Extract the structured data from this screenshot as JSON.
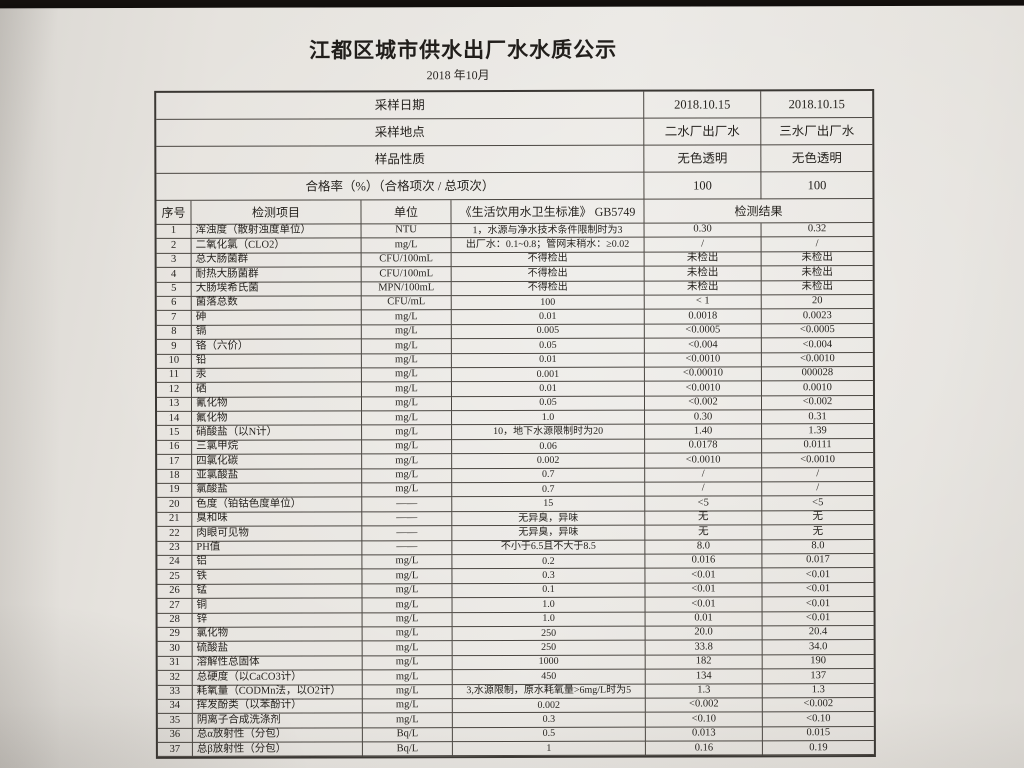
{
  "title": "江都区城市供水出厂水水质公示",
  "subtitle": "2018 年10月",
  "meta_rows": [
    {
      "label": "采样日期",
      "plant2": "2018.10.15",
      "plant3": "2018.10.15"
    },
    {
      "label": "采样地点",
      "plant2": "二水厂出厂水",
      "plant3": "三水厂出厂水"
    },
    {
      "label": "样品性质",
      "plant2": "无色透明",
      "plant3": "无色透明"
    },
    {
      "label": "合格率（%）（合格项次 / 总项次）",
      "plant2": "100",
      "plant3": "100"
    }
  ],
  "column_headers": {
    "no": "序号",
    "item": "检测项目",
    "unit": "单位",
    "standard": "《生活饮用水卫生标准》 GB5749",
    "result": "检测结果"
  },
  "rows": [
    {
      "no": "1",
      "item": "浑浊度（散射浊度单位）",
      "unit": "NTU",
      "std": "1，水源与净水技术条件限制时为3",
      "r1": "0.30",
      "r2": "0.32"
    },
    {
      "no": "2",
      "item": "二氧化氯（CLO2）",
      "unit": "mg/L",
      "std": "出厂水：0.1~0.8；管网末稍水：≥0.02",
      "r1": "/",
      "r2": "/"
    },
    {
      "no": "3",
      "item": "总大肠菌群",
      "unit": "CFU/100mL",
      "std": "不得检出",
      "r1": "未检出",
      "r2": "未检出"
    },
    {
      "no": "4",
      "item": "耐热大肠菌群",
      "unit": "CFU/100mL",
      "std": "不得检出",
      "r1": "未检出",
      "r2": "未检出"
    },
    {
      "no": "5",
      "item": "大肠埃希氏菌",
      "unit": "MPN/100mL",
      "std": "不得检出",
      "r1": "未检出",
      "r2": "未检出"
    },
    {
      "no": "6",
      "item": "菌落总数",
      "unit": "CFU/mL",
      "std": "100",
      "r1": "< 1",
      "r2": "20"
    },
    {
      "no": "7",
      "item": "砷",
      "unit": "mg/L",
      "std": "0.01",
      "r1": "0.0018",
      "r2": "0.0023"
    },
    {
      "no": "8",
      "item": "镉",
      "unit": "mg/L",
      "std": "0.005",
      "r1": "<0.0005",
      "r2": "<0.0005"
    },
    {
      "no": "9",
      "item": "铬（六价）",
      "unit": "mg/L",
      "std": "0.05",
      "r1": "<0.004",
      "r2": "<0.004"
    },
    {
      "no": "10",
      "item": "铅",
      "unit": "mg/L",
      "std": "0.01",
      "r1": "<0.0010",
      "r2": "<0.0010"
    },
    {
      "no": "11",
      "item": "汞",
      "unit": "mg/L",
      "std": "0.001",
      "r1": "<0.00010",
      "r2": "000028"
    },
    {
      "no": "12",
      "item": "硒",
      "unit": "mg/L",
      "std": "0.01",
      "r1": "<0.0010",
      "r2": "0.0010"
    },
    {
      "no": "13",
      "item": "氰化物",
      "unit": "mg/L",
      "std": "0.05",
      "r1": "<0.002",
      "r2": "<0.002"
    },
    {
      "no": "14",
      "item": "氟化物",
      "unit": "mg/L",
      "std": "1.0",
      "r1": "0.30",
      "r2": "0.31"
    },
    {
      "no": "15",
      "item": "硝酸盐（以N计）",
      "unit": "mg/L",
      "std": "10，地下水源限制时为20",
      "r1": "1.40",
      "r2": "1.39"
    },
    {
      "no": "16",
      "item": "三氯甲烷",
      "unit": "mg/L",
      "std": "0.06",
      "r1": "0.0178",
      "r2": "0.0111"
    },
    {
      "no": "17",
      "item": "四氯化碳",
      "unit": "mg/L",
      "std": "0.002",
      "r1": "<0.0010",
      "r2": "<0.0010"
    },
    {
      "no": "18",
      "item": "亚氯酸盐",
      "unit": "mg/L",
      "std": "0.7",
      "r1": "/",
      "r2": "/"
    },
    {
      "no": "19",
      "item": "氯酸盐",
      "unit": "mg/L",
      "std": "0.7",
      "r1": "/",
      "r2": "/"
    },
    {
      "no": "20",
      "item": "色度（铂钴色度单位）",
      "unit": "——",
      "std": "15",
      "r1": "<5",
      "r2": "<5"
    },
    {
      "no": "21",
      "item": "臭和味",
      "unit": "——",
      "std": "无异臭，异味",
      "r1": "无",
      "r2": "无"
    },
    {
      "no": "22",
      "item": "肉眼可见物",
      "unit": "——",
      "std": "无异臭，异味",
      "r1": "无",
      "r2": "无"
    },
    {
      "no": "23",
      "item": "PH值",
      "unit": "——",
      "std": "不小于6.5且不大于8.5",
      "r1": "8.0",
      "r2": "8.0"
    },
    {
      "no": "24",
      "item": "铝",
      "unit": "mg/L",
      "std": "0.2",
      "r1": "0.016",
      "r2": "0.017"
    },
    {
      "no": "25",
      "item": "铁",
      "unit": "mg/L",
      "std": "0.3",
      "r1": "<0.01",
      "r2": "<0.01"
    },
    {
      "no": "26",
      "item": "锰",
      "unit": "mg/L",
      "std": "0.1",
      "r1": "<0.01",
      "r2": "<0.01"
    },
    {
      "no": "27",
      "item": "铜",
      "unit": "mg/L",
      "std": "1.0",
      "r1": "<0.01",
      "r2": "<0.01"
    },
    {
      "no": "28",
      "item": "锌",
      "unit": "mg/L",
      "std": "1.0",
      "r1": "0.01",
      "r2": "<0.01"
    },
    {
      "no": "29",
      "item": "氯化物",
      "unit": "mg/L",
      "std": "250",
      "r1": "20.0",
      "r2": "20.4"
    },
    {
      "no": "30",
      "item": "硫酸盐",
      "unit": "mg/L",
      "std": "250",
      "r1": "33.8",
      "r2": "34.0"
    },
    {
      "no": "31",
      "item": "溶解性总固体",
      "unit": "mg/L",
      "std": "1000",
      "r1": "182",
      "r2": "190"
    },
    {
      "no": "32",
      "item": "总硬度（以CaCO3计）",
      "unit": "mg/L",
      "std": "450",
      "r1": "134",
      "r2": "137"
    },
    {
      "no": "33",
      "item": "耗氧量（CODMn法，以O2计）",
      "unit": "mg/L",
      "std": "3,水源限制，原水耗氧量>6mg/L时为5",
      "r1": "1.3",
      "r2": "1.3"
    },
    {
      "no": "34",
      "item": "挥发酚类（以苯酚计）",
      "unit": "mg/L",
      "std": "0.002",
      "r1": "<0.002",
      "r2": "<0.002"
    },
    {
      "no": "35",
      "item": "阴离子合成洗涤剂",
      "unit": "mg/L",
      "std": "0.3",
      "r1": "<0.10",
      "r2": "<0.10"
    },
    {
      "no": "36",
      "item": "总α放射性（分包）",
      "unit": "Bq/L",
      "std": "0.5",
      "r1": "0.013",
      "r2": "0.015"
    },
    {
      "no": "37",
      "item": "总β放射性（分包）",
      "unit": "Bq/L",
      "std": "1",
      "r1": "0.16",
      "r2": "0.19"
    }
  ]
}
